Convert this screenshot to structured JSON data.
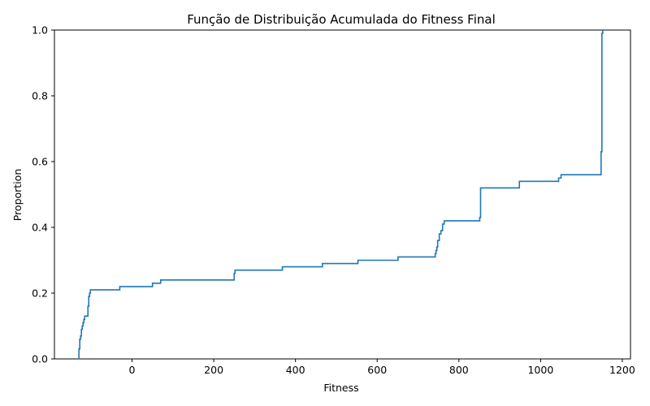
{
  "chart_data": {
    "type": "line",
    "subtype": "ecdf-step",
    "title": "Função de Distribuição Acumulada do Fitness Final",
    "xlabel": "Fitness",
    "ylabel": "Proportion",
    "xlim": [
      -190,
      1220
    ],
    "ylim": [
      0,
      1
    ],
    "xticks": [
      0,
      200,
      400,
      600,
      800,
      1000,
      1200
    ],
    "yticks": [
      0.0,
      0.2,
      0.4,
      0.6,
      0.8,
      1.0
    ],
    "ytick_labels": [
      "0.0",
      "0.2",
      "0.4",
      "0.6",
      "0.8",
      "1.0"
    ],
    "grid": false,
    "color": "#1f77b4",
    "series": [
      {
        "x": [
          -132,
          -130,
          -128,
          -126,
          -124,
          -122,
          -120,
          -118,
          -116,
          -112,
          -108,
          -106,
          -104,
          -102,
          -100,
          -30,
          50,
          70,
          250,
          252,
          368,
          466,
          553,
          651,
          742,
          744,
          746,
          748,
          752,
          756,
          760,
          764,
          851,
          853,
          948,
          1044,
          1050,
          1148,
          1150,
          1152
        ],
        "y": [
          0.0,
          0.03,
          0.06,
          0.07,
          0.09,
          0.1,
          0.11,
          0.12,
          0.13,
          0.13,
          0.16,
          0.19,
          0.2,
          0.21,
          0.21,
          0.22,
          0.23,
          0.24,
          0.26,
          0.27,
          0.28,
          0.29,
          0.3,
          0.31,
          0.32,
          0.33,
          0.34,
          0.36,
          0.38,
          0.39,
          0.41,
          0.42,
          0.43,
          0.52,
          0.54,
          0.55,
          0.56,
          0.63,
          0.99,
          1.0
        ]
      }
    ]
  }
}
